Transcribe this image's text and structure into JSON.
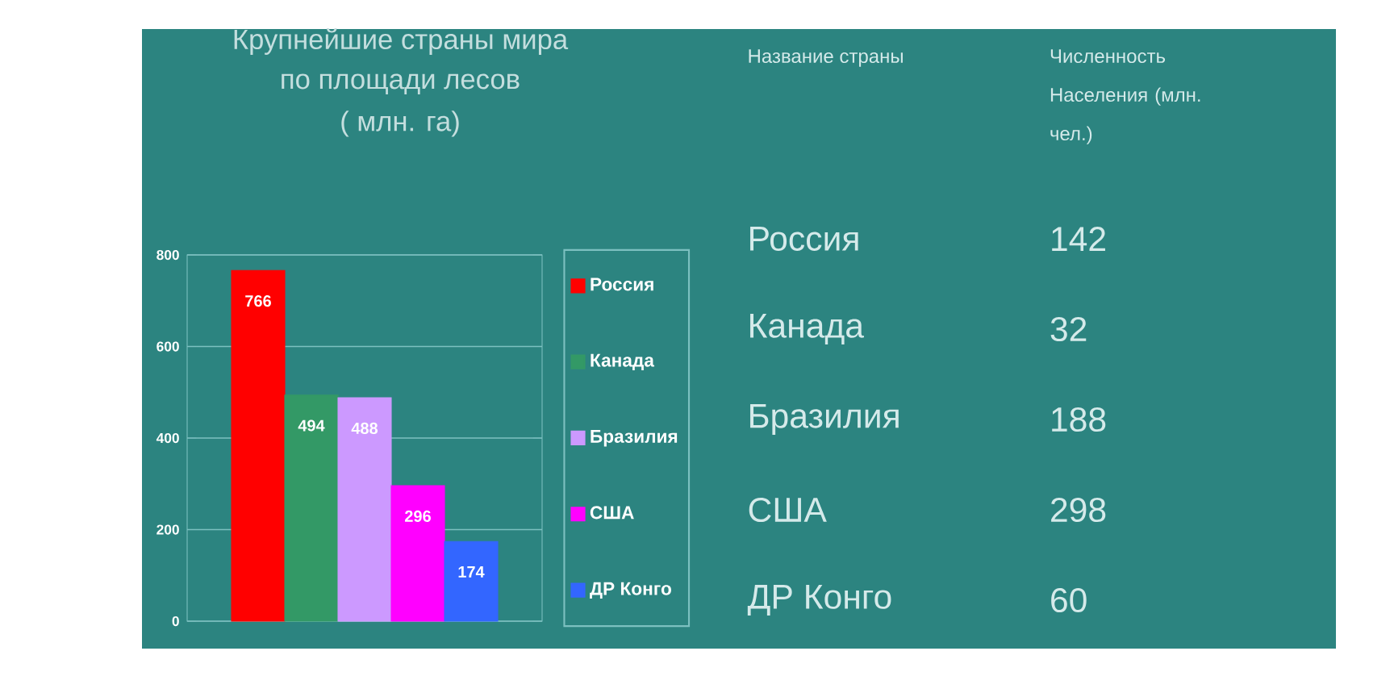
{
  "chart_data": [
    {
      "type": "bar",
      "title": "Крупнейшие страны мира по площади лесов",
      "subtitle": "( млн. га)",
      "categories": [
        null
      ],
      "series": [
        {
          "name": "Россия",
          "color": "#ff0000",
          "values": [
            766
          ]
        },
        {
          "name": "Канада",
          "color": "#339966",
          "values": [
            494
          ]
        },
        {
          "name": "Бразилия",
          "color": "#cc99ff",
          "values": [
            488
          ]
        },
        {
          "name": "США",
          "color": "#ff00ff",
          "values": [
            296
          ]
        },
        {
          "name": "ДР Конго",
          "color": "#3366ff",
          "values": [
            174
          ]
        }
      ],
      "ylim": [
        0,
        800
      ],
      "yticks": [
        0,
        200,
        400,
        600,
        800
      ],
      "grid": "y",
      "legend": "right",
      "data_labels": true
    },
    {
      "type": "other",
      "xlabel": "Название страны",
      "ylabel": "Численность Населения (млн. чел.)",
      "categories": [
        "Россия",
        "Канада",
        "Бразилия",
        "США",
        "ДР Конго"
      ],
      "values": [
        142,
        32,
        188,
        298,
        60
      ],
      "data_labels": true
    }
  ]
}
